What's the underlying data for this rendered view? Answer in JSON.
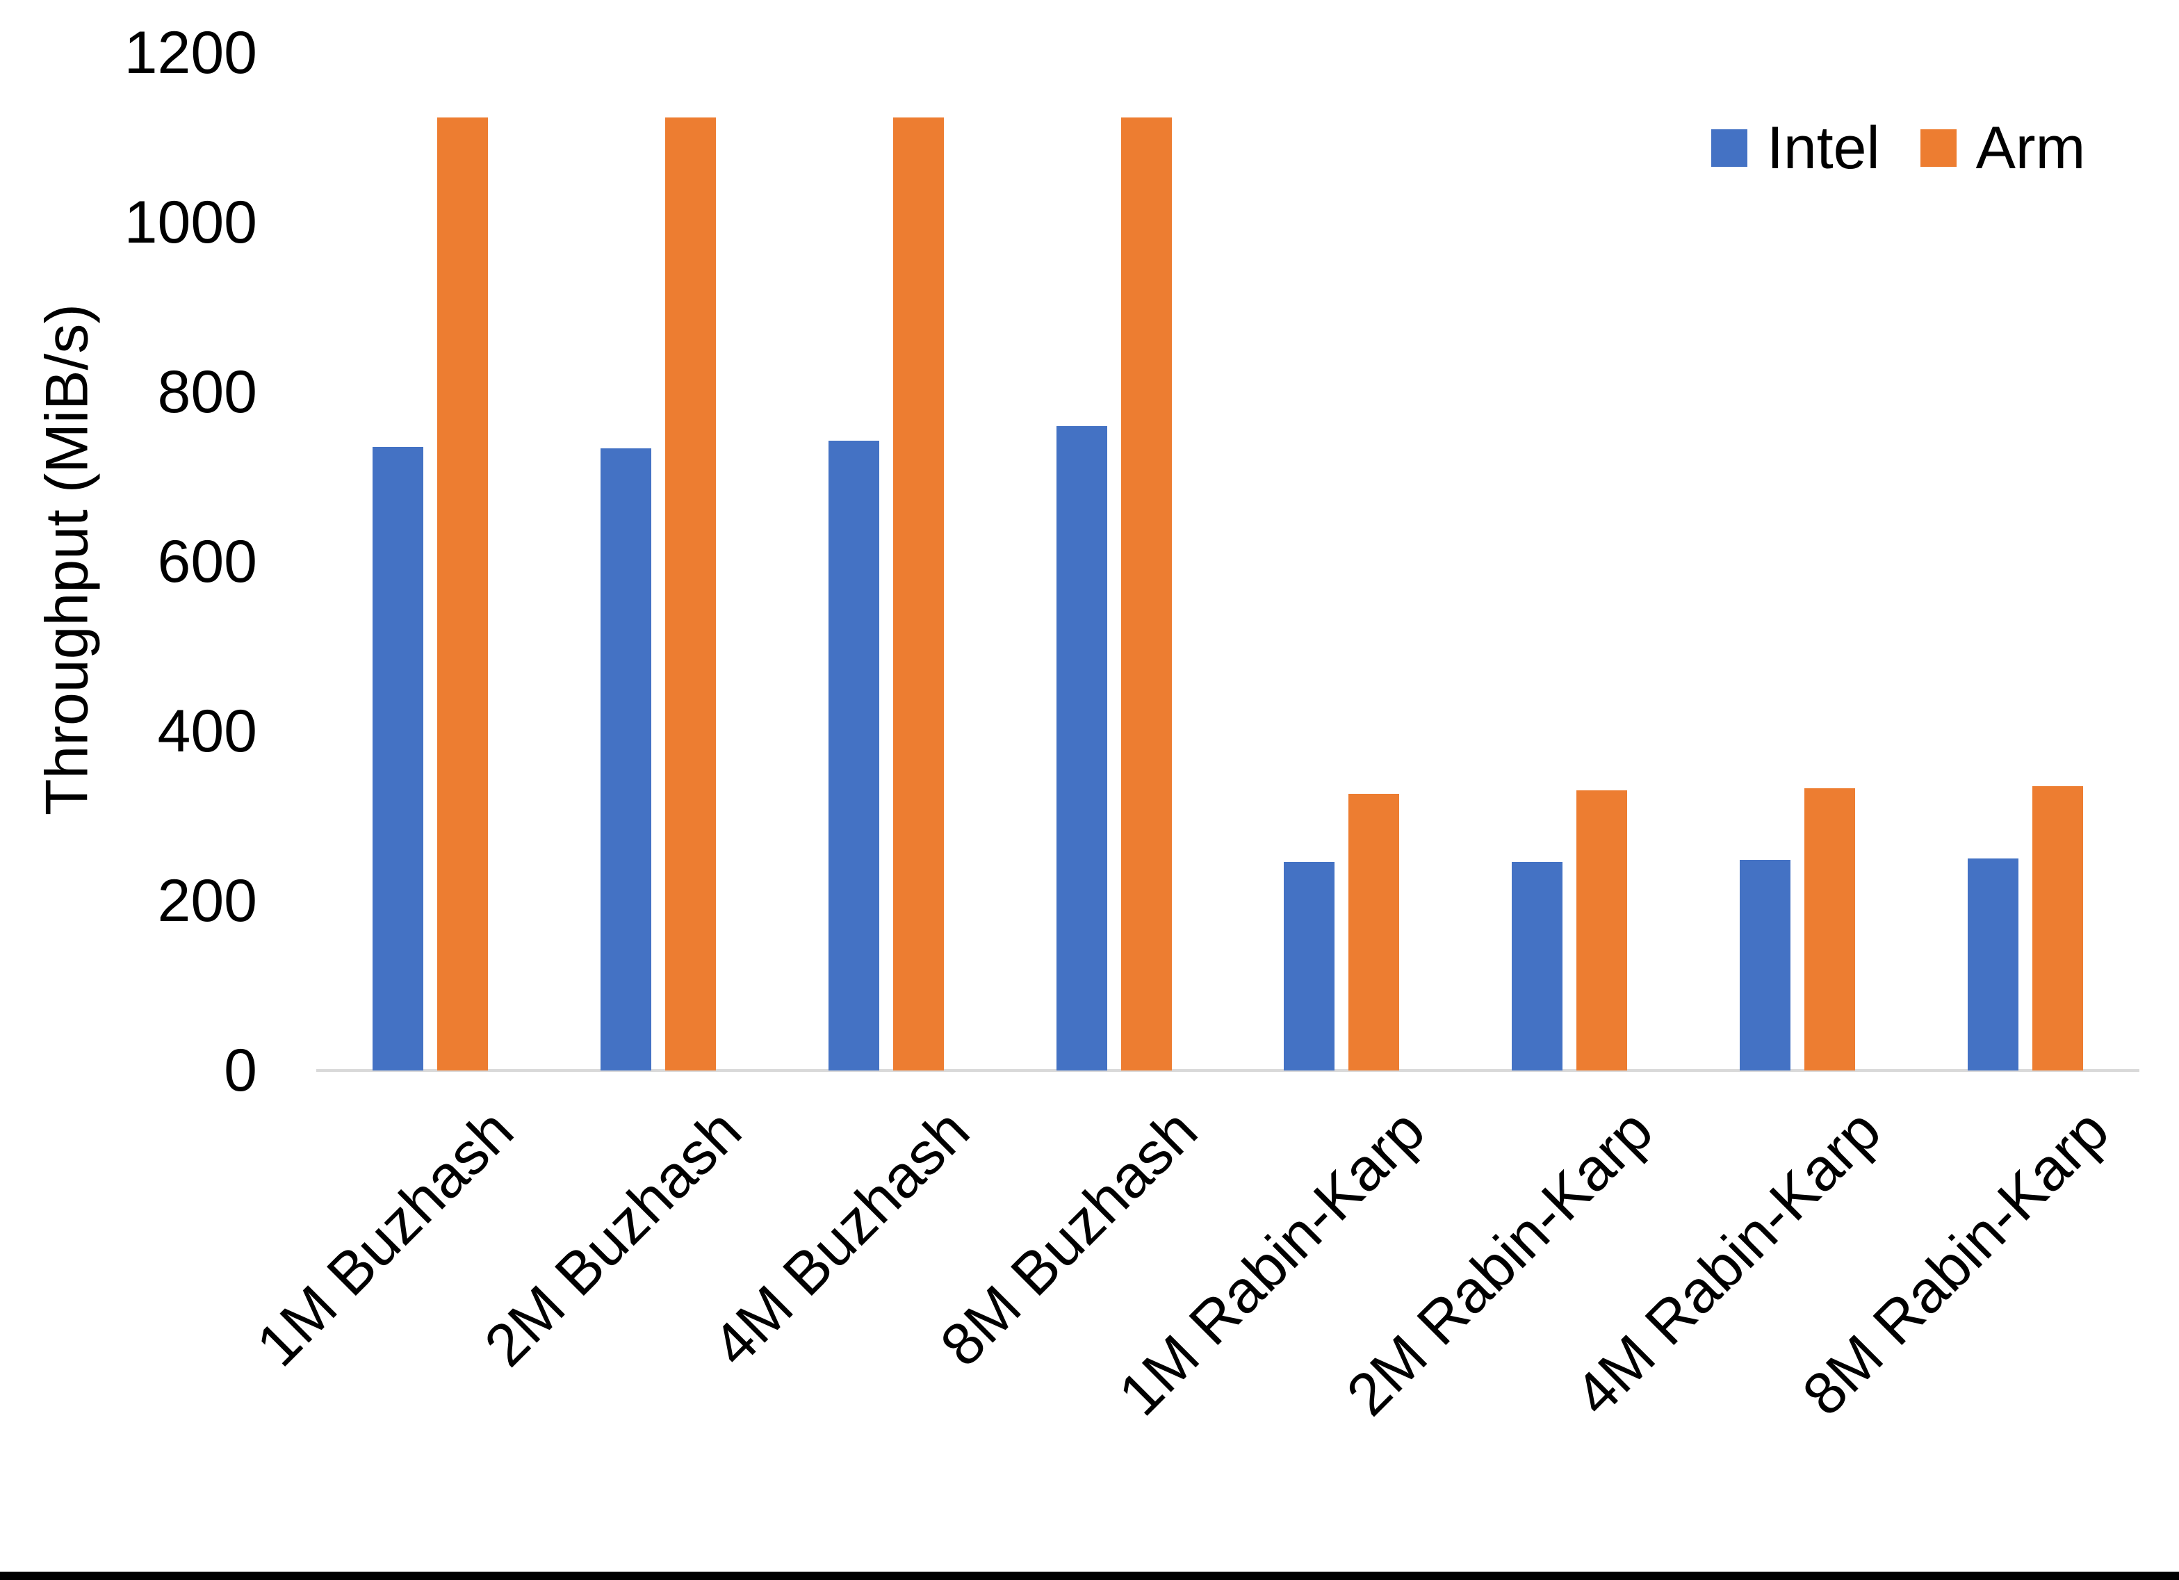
{
  "chart_data": {
    "type": "bar",
    "title": "",
    "categories": [
      "1M Buzhash",
      "2M Buzhash",
      "4M Buzhash",
      "8M Buzhash",
      "1M Rabin-Karp",
      "2M Rabin-Karp",
      "4M Rabin-Karp",
      "8M Rabin-Karp"
    ],
    "series": [
      {
        "name": "Intel",
        "color": "#4472C4",
        "values": [
          735,
          734,
          743,
          760,
          246,
          246,
          248,
          250
        ]
      },
      {
        "name": "Arm",
        "color": "#ED7D31",
        "values": [
          1124,
          1124,
          1124,
          1124,
          326,
          330,
          333,
          335
        ]
      }
    ],
    "xlabel": "",
    "ylabel": "Throughput (MiB/s)",
    "ylim": [
      0,
      1200
    ],
    "yticks": [
      0,
      200,
      400,
      600,
      800,
      1000,
      1200
    ],
    "grid": false,
    "legend_position": "top-right"
  },
  "colors": {
    "axis_line": "#D9D9D9",
    "text": "#000000",
    "background": "#FFFFFF",
    "bottom_border": "#000000"
  }
}
